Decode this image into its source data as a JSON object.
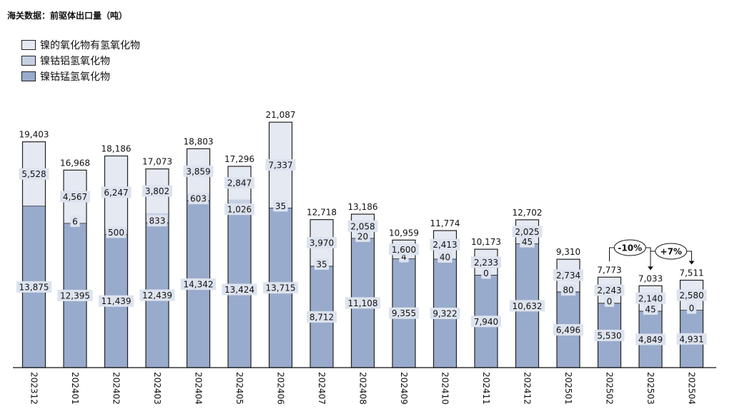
{
  "title": "海关数据：前驱体出口量（吨）",
  "colors": {
    "ni_oxide": "#e4e9f2",
    "nca": "#c5cfe4",
    "ncm": "#99abcc",
    "label_bg": "#dde3ee",
    "outline": "#222222"
  },
  "chart_data": {
    "type": "bar",
    "stacked": true,
    "title": "海关数据：前驱体出口量（吨）",
    "categories": [
      "202312",
      "202401",
      "202402",
      "202403",
      "202404",
      "202405",
      "202406",
      "202407",
      "202408",
      "202409",
      "202410",
      "202411",
      "202412",
      "202501",
      "202502",
      "202503",
      "202504"
    ],
    "series": [
      {
        "name": "镍钴锰氢氧化物",
        "key": "ncm",
        "values": [
          13875,
          12395,
          11439,
          12439,
          14342,
          13424,
          13715,
          8712,
          11108,
          9355,
          9322,
          7940,
          10632,
          6496,
          5530,
          4849,
          4931
        ]
      },
      {
        "name": "镍钴铝氢氧化物",
        "key": "nca",
        "values": [
          0,
          6,
          500,
          833,
          603,
          1026,
          35,
          35,
          20,
          4,
          40,
          0,
          45,
          80,
          0,
          45,
          0
        ]
      },
      {
        "name": "镍的氧化物有氢氧化物",
        "key": "ni_oxide",
        "values": [
          5528,
          4567,
          6247,
          3802,
          3859,
          2847,
          7337,
          3970,
          2058,
          1600,
          2413,
          2233,
          2025,
          2734,
          2243,
          2140,
          2580
        ]
      }
    ],
    "mid_labels": [
      "",
      "6",
      "500",
      "833",
      "603",
      "1,026",
      "35",
      "35",
      "20",
      "4",
      "40",
      "0",
      "45",
      "80",
      "0",
      "45",
      "0"
    ],
    "totals": [
      "19,403",
      "16,968",
      "18,186",
      "17,073",
      "18,803",
      "17,296",
      "21,087",
      "12,718",
      "13,186",
      "10,959",
      "11,774",
      "10,173",
      "12,702",
      "9,310",
      "7,773",
      "7,033",
      "7,511"
    ],
    "legend": [
      "镍的氧化物有氢氧化物",
      "镍钴铝氢氧化物",
      "镍钴锰氢氧化物"
    ],
    "legend_position": "top-left",
    "ylim": [
      0,
      23000
    ],
    "grid": false,
    "annotations": [
      {
        "text": "-10%",
        "from": "202502",
        "to": "202503"
      },
      {
        "text": "+7%",
        "from": "202503",
        "to": "202504"
      }
    ]
  }
}
